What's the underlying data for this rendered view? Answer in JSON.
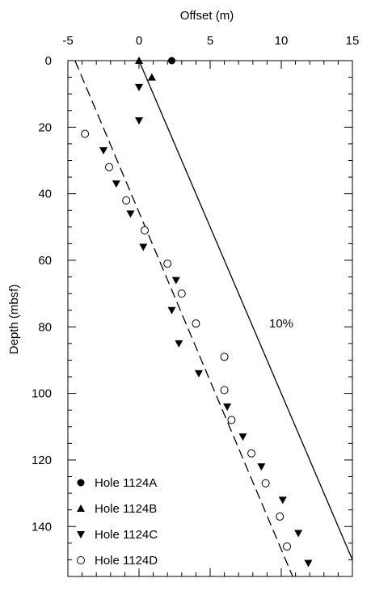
{
  "chart_data": {
    "type": "scatter",
    "xlabel": "Offset (m)",
    "ylabel": "Depth (mbsf)",
    "x_axis_position": "top",
    "y_axis_inverted": true,
    "xlim": [
      -5,
      15
    ],
    "ylim": [
      0,
      155
    ],
    "xticks": [
      -5,
      0,
      5,
      10,
      15
    ],
    "yticks": [
      0,
      20,
      40,
      60,
      80,
      100,
      120,
      140
    ],
    "grid": false,
    "legend_position": "bottom-left",
    "series": [
      {
        "name": "Hole 1124A",
        "marker": "filled-circle",
        "points": [
          [
            2.3,
            0
          ]
        ]
      },
      {
        "name": "Hole 1124B",
        "marker": "filled-triangle-up",
        "points": [
          [
            0.0,
            0
          ],
          [
            0.9,
            5
          ]
        ]
      },
      {
        "name": "Hole 1124C",
        "marker": "filled-triangle-down",
        "points": [
          [
            0.0,
            8
          ],
          [
            0.0,
            18
          ],
          [
            -2.5,
            27
          ],
          [
            -1.6,
            37
          ],
          [
            -0.6,
            46
          ],
          [
            0.3,
            56
          ],
          [
            2.6,
            66
          ],
          [
            2.3,
            75
          ],
          [
            2.8,
            85
          ],
          [
            4.2,
            94
          ],
          [
            6.2,
            104
          ],
          [
            7.3,
            113
          ],
          [
            8.6,
            122
          ],
          [
            10.1,
            132
          ],
          [
            11.2,
            142
          ],
          [
            11.9,
            151
          ]
        ]
      },
      {
        "name": "Hole 1124D",
        "marker": "open-circle",
        "points": [
          [
            -3.8,
            22
          ],
          [
            -2.1,
            32
          ],
          [
            -0.9,
            42
          ],
          [
            0.4,
            51
          ],
          [
            2.0,
            61
          ],
          [
            3.0,
            70
          ],
          [
            4.0,
            79
          ],
          [
            6.0,
            89
          ],
          [
            6.0,
            99
          ],
          [
            6.5,
            108
          ],
          [
            7.9,
            118
          ],
          [
            8.9,
            127
          ],
          [
            9.9,
            137
          ],
          [
            10.4,
            146
          ]
        ]
      }
    ],
    "lines": [
      {
        "style": "solid",
        "points": [
          [
            0.0,
            0
          ],
          [
            15.0,
            150
          ]
        ]
      },
      {
        "style": "dashed",
        "points": [
          [
            -4.5,
            0
          ],
          [
            10.8,
            155
          ]
        ]
      }
    ],
    "annotations": [
      {
        "text": "10%",
        "x": 10.0,
        "y": 79
      }
    ]
  }
}
